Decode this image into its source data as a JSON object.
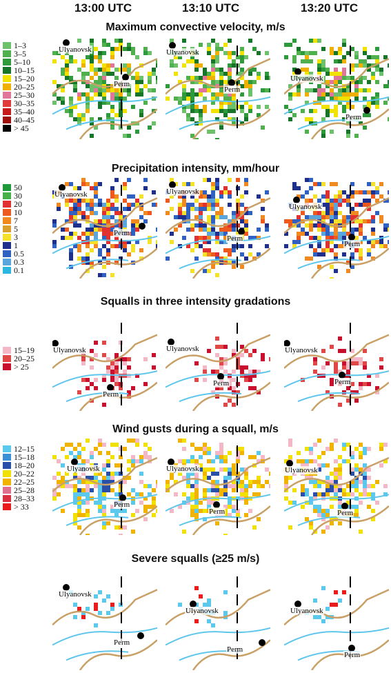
{
  "times": [
    "13:00 UTC",
    "13:10 UTC",
    "13:20 UTC"
  ],
  "cities": {
    "north": "Ulyanovsk",
    "south": "Perm"
  },
  "sections": [
    {
      "title": "Maximum convective velocity, m/s",
      "legend": [
        {
          "label": "1–3",
          "color": "#6cc16a"
        },
        {
          "label": "3–5",
          "color": "#4fb04d"
        },
        {
          "label": "5–10",
          "color": "#2f9a3c"
        },
        {
          "label": "10–15",
          "color": "#17752a"
        },
        {
          "label": "15–20",
          "color": "#f1e200"
        },
        {
          "label": "20–25",
          "color": "#f0b000"
        },
        {
          "label": "25–30",
          "color": "#e0779a"
        },
        {
          "label": "30–35",
          "color": "#e03a3a"
        },
        {
          "label": "35–40",
          "color": "#c71a1a"
        },
        {
          "label": "40–45",
          "color": "#9e1010"
        },
        {
          "label": "> 45",
          "color": "#000000"
        }
      ]
    },
    {
      "title": "Precipitation intensity, mm/hour",
      "legend": [
        {
          "label": "50",
          "color": "#1f9a3a"
        },
        {
          "label": "30",
          "color": "#48b04a"
        },
        {
          "label": "20",
          "color": "#e03030"
        },
        {
          "label": "10",
          "color": "#ee5a1e"
        },
        {
          "label": "7",
          "color": "#f08a20"
        },
        {
          "label": "5",
          "color": "#d9a030"
        },
        {
          "label": "3",
          "color": "#f3e12a"
        },
        {
          "label": "1",
          "color": "#1e2f8c"
        },
        {
          "label": "0.5",
          "color": "#3060c0"
        },
        {
          "label": "0.3",
          "color": "#5aa5dc"
        },
        {
          "label": "0.1",
          "color": "#2cb6e0"
        }
      ]
    },
    {
      "title": "Squalls in three intensity gradations",
      "legend": [
        {
          "label": "15–19",
          "color": "#f4b7c6"
        },
        {
          "label": "20–25",
          "color": "#e04848"
        },
        {
          "label": "> 25",
          "color": "#c8102e"
        }
      ]
    },
    {
      "title": "Wind gusts during a squall, m/s",
      "legend": [
        {
          "label": "12–15",
          "color": "#5bc8ec"
        },
        {
          "label": "15–18",
          "color": "#3a8fd6"
        },
        {
          "label": "18–20",
          "color": "#2a4fa8"
        },
        {
          "label": "20–22",
          "color": "#f2e000"
        },
        {
          "label": "22–25",
          "color": "#f0b400"
        },
        {
          "label": "25–28",
          "color": "#e07090"
        },
        {
          "label": "28–33",
          "color": "#d83040"
        },
        {
          "label": "> 33",
          "color": "#e81c1c"
        }
      ]
    },
    {
      "title": "Severe squalls (≥25 m/s)",
      "legend": []
    }
  ],
  "colors": {
    "river": "#5ec6ec",
    "border": "#c9a066",
    "boundary_dashed": "#000000"
  }
}
